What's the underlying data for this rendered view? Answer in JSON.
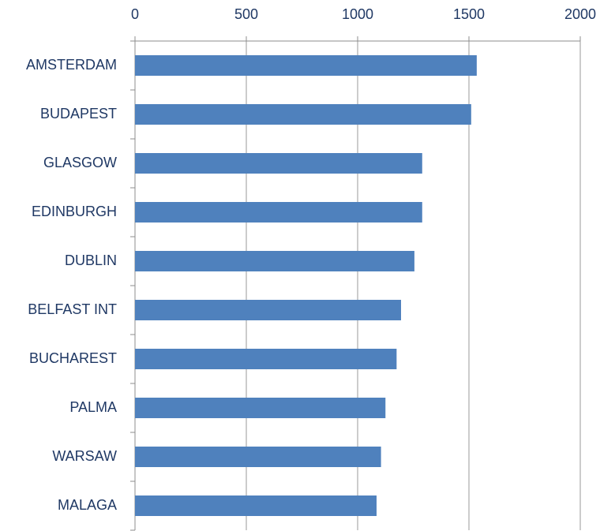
{
  "chart_data": {
    "type": "bar",
    "orientation": "horizontal",
    "categories": [
      "AMSTERDAM",
      "BUDAPEST",
      "GLASGOW",
      "EDINBURGH",
      "DUBLIN",
      "BELFAST INT",
      "BUCHAREST",
      "PALMA",
      "WARSAW",
      "MALAGA"
    ],
    "values": [
      1535,
      1510,
      1290,
      1290,
      1255,
      1195,
      1175,
      1125,
      1105,
      1085
    ],
    "color": "#4f81bd",
    "xlim": [
      0,
      2000
    ],
    "xticks": [
      0,
      500,
      1000,
      1500,
      2000
    ],
    "grid": true
  }
}
